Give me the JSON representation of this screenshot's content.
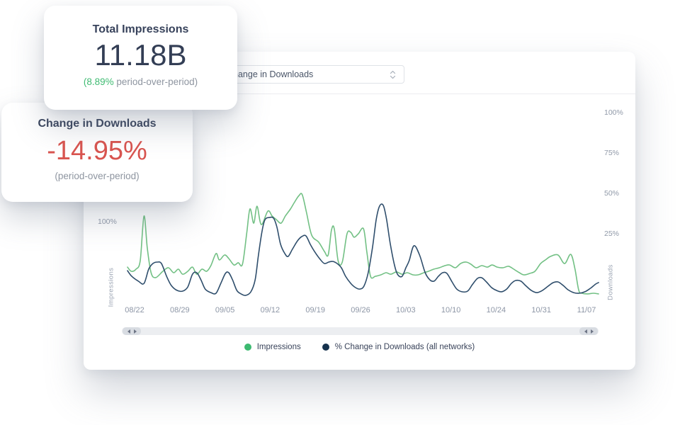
{
  "cards": {
    "impressions": {
      "title": "Total Impressions",
      "value": "11.18B",
      "sub_highlight": "(8.89%",
      "sub_rest": " period-over-period)"
    },
    "downloads": {
      "title": "Change in Downloads",
      "value": "-14.95%",
      "sub": "(period-over-period)"
    }
  },
  "panel": {
    "dropdown": {
      "value": "Change in Downloads"
    }
  },
  "colors": {
    "impressions_line": "#72c084",
    "impressions_dot": "#3cba70",
    "downloads_line": "#2f4e6c",
    "downloads_dot": "#16324d",
    "delta_positive": "#3fbb72",
    "value_negative": "#d9544f"
  },
  "chart_data": {
    "type": "line",
    "title": "",
    "grid": false,
    "legend_position": "bottom",
    "x_axis": {
      "tick_labels": [
        "08/22",
        "08/29",
        "09/05",
        "09/12",
        "09/19",
        "09/26",
        "10/03",
        "10/10",
        "10/24",
        "10/31",
        "11/07"
      ]
    },
    "left_axis": {
      "label": "Impressions",
      "ticks": [
        "100%"
      ],
      "unit": "%"
    },
    "right_axis": {
      "label": "Downloads",
      "ticks": [
        "100%",
        "75%",
        "50%",
        "25%"
      ],
      "unit": "%"
    },
    "series": [
      {
        "name": "Impressions",
        "axis": "left",
        "color": "#72c084",
        "dot_color": "#3cba70",
        "points": [
          [
            0.0,
            71.9
          ],
          [
            0.008,
            69.3
          ],
          [
            0.018,
            70.6
          ],
          [
            0.027,
            75.9
          ],
          [
            0.035,
            103.5
          ],
          [
            0.042,
            83.8
          ],
          [
            0.05,
            68.4
          ],
          [
            0.06,
            65.4
          ],
          [
            0.075,
            69.3
          ],
          [
            0.087,
            71.5
          ],
          [
            0.098,
            68.4
          ],
          [
            0.108,
            70.6
          ],
          [
            0.117,
            67.5
          ],
          [
            0.128,
            69.3
          ],
          [
            0.138,
            71.9
          ],
          [
            0.147,
            67.5
          ],
          [
            0.158,
            70.6
          ],
          [
            0.168,
            69.3
          ],
          [
            0.177,
            72.8
          ],
          [
            0.188,
            80.3
          ],
          [
            0.195,
            76.3
          ],
          [
            0.206,
            79.4
          ],
          [
            0.215,
            77.2
          ],
          [
            0.226,
            73.2
          ],
          [
            0.235,
            74.6
          ],
          [
            0.244,
            73.7
          ],
          [
            0.253,
            92.5
          ],
          [
            0.26,
            107.9
          ],
          [
            0.268,
            99.1
          ],
          [
            0.275,
            109.6
          ],
          [
            0.284,
            98.2
          ],
          [
            0.298,
            106.6
          ],
          [
            0.307,
            103.5
          ],
          [
            0.316,
            101.3
          ],
          [
            0.326,
            99.1
          ],
          [
            0.335,
            103.5
          ],
          [
            0.346,
            107.9
          ],
          [
            0.355,
            112.3
          ],
          [
            0.364,
            116.2
          ],
          [
            0.371,
            116.7
          ],
          [
            0.38,
            105.7
          ],
          [
            0.391,
            91.7
          ],
          [
            0.406,
            87.3
          ],
          [
            0.418,
            81.6
          ],
          [
            0.426,
            79.4
          ],
          [
            0.433,
            94.7
          ],
          [
            0.439,
            95.6
          ],
          [
            0.447,
            75.9
          ],
          [
            0.456,
            75.0
          ],
          [
            0.466,
            92.5
          ],
          [
            0.474,
            93.4
          ],
          [
            0.481,
            90.4
          ],
          [
            0.49,
            92.5
          ],
          [
            0.501,
            95.6
          ],
          [
            0.508,
            81.6
          ],
          [
            0.516,
            66.2
          ],
          [
            0.526,
            66.2
          ],
          [
            0.538,
            67.1
          ],
          [
            0.549,
            68.4
          ],
          [
            0.559,
            67.5
          ],
          [
            0.571,
            68.9
          ],
          [
            0.583,
            67.5
          ],
          [
            0.594,
            68.4
          ],
          [
            0.606,
            67.1
          ],
          [
            0.617,
            67.1
          ],
          [
            0.629,
            68.4
          ],
          [
            0.639,
            69.3
          ],
          [
            0.65,
            70.6
          ],
          [
            0.662,
            71.5
          ],
          [
            0.674,
            72.8
          ],
          [
            0.684,
            73.2
          ],
          [
            0.696,
            71.5
          ],
          [
            0.707,
            74.1
          ],
          [
            0.719,
            75.0
          ],
          [
            0.729,
            73.7
          ],
          [
            0.74,
            71.5
          ],
          [
            0.752,
            72.8
          ],
          [
            0.764,
            71.9
          ],
          [
            0.774,
            73.2
          ],
          [
            0.785,
            71.9
          ],
          [
            0.797,
            71.5
          ],
          [
            0.809,
            72.4
          ],
          [
            0.82,
            70.6
          ],
          [
            0.832,
            68.4
          ],
          [
            0.842,
            67.1
          ],
          [
            0.854,
            68.0
          ],
          [
            0.865,
            69.3
          ],
          [
            0.877,
            74.1
          ],
          [
            0.887,
            76.3
          ],
          [
            0.898,
            78.5
          ],
          [
            0.914,
            79.4
          ],
          [
            0.928,
            74.1
          ],
          [
            0.941,
            79.8
          ],
          [
            0.95,
            70.6
          ],
          [
            0.958,
            57.5
          ],
          [
            0.965,
            55.7
          ],
          [
            0.977,
            55.3
          ],
          [
            0.989,
            55.7
          ],
          [
            1.0,
            55.3
          ]
        ]
      },
      {
        "name": "% Change in Downloads (all networks)",
        "axis": "right",
        "color": "#2f4e6c",
        "dot_color": "#16324d",
        "points": [
          [
            0.0,
            2.6
          ],
          [
            0.009,
            -0.9
          ],
          [
            0.023,
            -3.9
          ],
          [
            0.035,
            -5.3
          ],
          [
            0.045,
            3.5
          ],
          [
            0.054,
            7.0
          ],
          [
            0.063,
            7.9
          ],
          [
            0.072,
            7.0
          ],
          [
            0.083,
            -0.9
          ],
          [
            0.093,
            -6.6
          ],
          [
            0.105,
            -9.6
          ],
          [
            0.117,
            -10.1
          ],
          [
            0.128,
            -7.5
          ],
          [
            0.138,
            0.4
          ],
          [
            0.147,
            1.3
          ],
          [
            0.156,
            -3.1
          ],
          [
            0.165,
            -8.8
          ],
          [
            0.177,
            -11.0
          ],
          [
            0.188,
            -11.4
          ],
          [
            0.198,
            -5.3
          ],
          [
            0.208,
            0.9
          ],
          [
            0.215,
            1.3
          ],
          [
            0.223,
            -3.1
          ],
          [
            0.232,
            -9.6
          ],
          [
            0.241,
            -11.8
          ],
          [
            0.251,
            -12.7
          ],
          [
            0.262,
            -10.5
          ],
          [
            0.271,
            -3.1
          ],
          [
            0.278,
            12.3
          ],
          [
            0.286,
            27.6
          ],
          [
            0.292,
            34.2
          ],
          [
            0.301,
            35.5
          ],
          [
            0.31,
            35.1
          ],
          [
            0.317,
            29.8
          ],
          [
            0.325,
            18.9
          ],
          [
            0.334,
            13.2
          ],
          [
            0.341,
            11.4
          ],
          [
            0.35,
            15.8
          ],
          [
            0.361,
            21.1
          ],
          [
            0.37,
            23.7
          ],
          [
            0.379,
            24.1
          ],
          [
            0.388,
            18.9
          ],
          [
            0.398,
            14.0
          ],
          [
            0.409,
            9.6
          ],
          [
            0.418,
            7.0
          ],
          [
            0.427,
            7.9
          ],
          [
            0.436,
            8.3
          ],
          [
            0.445,
            7.0
          ],
          [
            0.454,
            4.4
          ],
          [
            0.463,
            -0.9
          ],
          [
            0.474,
            -5.3
          ],
          [
            0.484,
            -7.9
          ],
          [
            0.493,
            -8.8
          ],
          [
            0.502,
            -7.0
          ],
          [
            0.511,
            1.3
          ],
          [
            0.52,
            16.7
          ],
          [
            0.528,
            34.2
          ],
          [
            0.535,
            42.5
          ],
          [
            0.543,
            43.0
          ],
          [
            0.55,
            34.2
          ],
          [
            0.558,
            18.9
          ],
          [
            0.567,
            5.7
          ],
          [
            0.574,
            0.0
          ],
          [
            0.583,
            -0.9
          ],
          [
            0.591,
            4.4
          ],
          [
            0.598,
            8.8
          ],
          [
            0.608,
            18.0
          ],
          [
            0.62,
            12.3
          ],
          [
            0.632,
            1.3
          ],
          [
            0.642,
            -3.1
          ],
          [
            0.651,
            -3.9
          ],
          [
            0.66,
            -0.9
          ],
          [
            0.669,
            1.3
          ],
          [
            0.678,
            0.9
          ],
          [
            0.689,
            -4.4
          ],
          [
            0.699,
            -8.8
          ],
          [
            0.71,
            -10.5
          ],
          [
            0.722,
            -10.1
          ],
          [
            0.732,
            -6.1
          ],
          [
            0.743,
            -2.2
          ],
          [
            0.752,
            -1.8
          ],
          [
            0.762,
            -4.4
          ],
          [
            0.773,
            -7.9
          ],
          [
            0.783,
            -9.6
          ],
          [
            0.794,
            -10.5
          ],
          [
            0.805,
            -8.8
          ],
          [
            0.815,
            -5.3
          ],
          [
            0.824,
            -3.5
          ],
          [
            0.835,
            -3.9
          ],
          [
            0.845,
            -6.6
          ],
          [
            0.857,
            -9.6
          ],
          [
            0.869,
            -11.0
          ],
          [
            0.881,
            -9.6
          ],
          [
            0.893,
            -7.0
          ],
          [
            0.904,
            -4.8
          ],
          [
            0.914,
            -4.4
          ],
          [
            0.925,
            -6.6
          ],
          [
            0.935,
            -9.2
          ],
          [
            0.947,
            -11.0
          ],
          [
            0.959,
            -11.4
          ],
          [
            0.971,
            -10.5
          ],
          [
            0.983,
            -8.3
          ],
          [
            0.994,
            -5.7
          ],
          [
            1.0,
            -4.8
          ]
        ]
      }
    ]
  }
}
